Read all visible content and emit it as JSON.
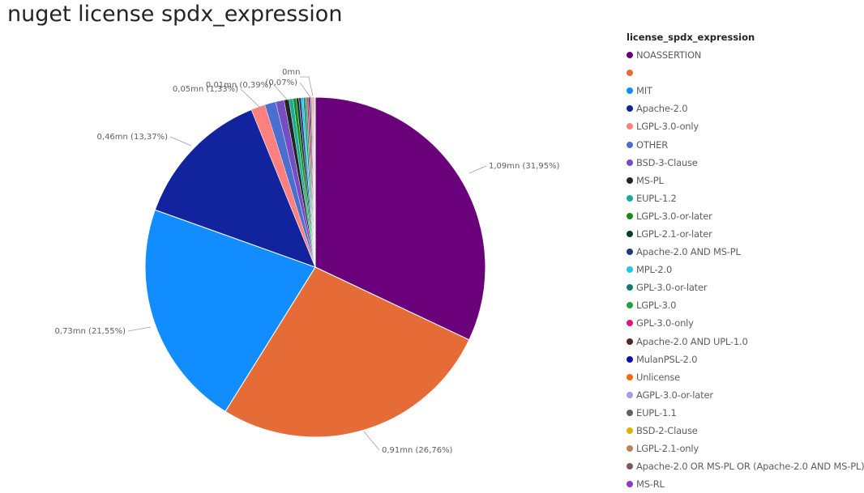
{
  "title": "nuget license spdx_expression",
  "legend_title": "license_spdx_expression",
  "chart_data": {
    "type": "pie",
    "title": "nuget license spdx_expression",
    "legend_title": "license_spdx_expression",
    "legend_position": "right",
    "slices": [
      {
        "label": "NOASSERTION",
        "percent": 31.95,
        "value_label": "1,09mn (31,95%)",
        "color": "#6B007B"
      },
      {
        "label": "",
        "percent": 26.76,
        "value_label": "0,91mn (26,76%)",
        "color": "#E66C37"
      },
      {
        "label": "MIT",
        "percent": 21.55,
        "value_label": "0,73mn (21,55%)",
        "color": "#118DFF"
      },
      {
        "label": "Apache-2.0",
        "percent": 13.37,
        "value_label": "0,46mn (13,37%)",
        "color": "#12239E"
      },
      {
        "label": "LGPL-3.0-only",
        "percent": 1.33,
        "value_label": "0,05mn (1,33%)",
        "color": "#FD807F"
      },
      {
        "label": "OTHER",
        "percent": 1.05,
        "value_label": "",
        "color": "#4A6FCF"
      },
      {
        "label": "BSD-3-Clause",
        "percent": 0.8,
        "value_label": "",
        "color": "#744EC2"
      },
      {
        "label": "MS-PL",
        "percent": 0.45,
        "value_label": "",
        "color": "#252423"
      },
      {
        "label": "EUPL-1.2",
        "percent": 0.39,
        "value_label": "0,01mn (0,39%)",
        "color": "#1AAB9B"
      },
      {
        "label": "LGPL-3.0-or-later",
        "percent": 0.3,
        "value_label": "",
        "color": "#1A8A1A"
      },
      {
        "label": "LGPL-2.1-or-later",
        "percent": 0.25,
        "value_label": "",
        "color": "#0C3B2A"
      },
      {
        "label": "Apache-2.0 AND MS-PL",
        "percent": 0.22,
        "value_label": "",
        "color": "#1F3A7A"
      },
      {
        "label": "MPL-2.0",
        "percent": 0.2,
        "value_label": "",
        "color": "#27C4E8"
      },
      {
        "label": "GPL-3.0-or-later",
        "percent": 0.18,
        "value_label": "",
        "color": "#167A6E"
      },
      {
        "label": "LGPL-3.0",
        "percent": 0.16,
        "value_label": "",
        "color": "#22A33A"
      },
      {
        "label": "GPL-3.0-only",
        "percent": 0.14,
        "value_label": "",
        "color": "#E0157F"
      },
      {
        "label": "Apache-2.0 AND UPL-1.0",
        "percent": 0.12,
        "value_label": "",
        "color": "#4A2A2A"
      },
      {
        "label": "MulanPSL-2.0",
        "percent": 0.1,
        "value_label": "",
        "color": "#0B12A8"
      },
      {
        "label": "Unlicense",
        "percent": 0.09,
        "value_label": "",
        "color": "#F26A0E"
      },
      {
        "label": "AGPL-3.0-or-later",
        "percent": 0.08,
        "value_label": "",
        "color": "#A89BE0"
      },
      {
        "label": "EUPL-1.1",
        "percent": 0.07,
        "value_label": "(0,07%)",
        "color": "#5E6166"
      },
      {
        "label": "BSD-2-Clause",
        "percent": 0.06,
        "value_label": "",
        "color": "#D9B300"
      },
      {
        "label": "LGPL-2.1-only",
        "percent": 0.05,
        "value_label": "",
        "color": "#B8845E"
      },
      {
        "label": "Apache-2.0 OR MS-PL OR (Apache-2.0 AND MS-PL)",
        "percent": 0.04,
        "value_label": "",
        "color": "#7A5A52"
      },
      {
        "label": "MS-RL",
        "percent": 0.03,
        "value_label": "",
        "color": "#8A3CC2"
      }
    ],
    "extra_labels": [
      "0mn"
    ]
  }
}
